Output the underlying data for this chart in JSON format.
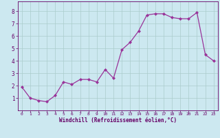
{
  "x": [
    0,
    1,
    2,
    3,
    4,
    5,
    6,
    7,
    8,
    9,
    10,
    11,
    12,
    13,
    14,
    15,
    16,
    17,
    18,
    19,
    20,
    21,
    22,
    23
  ],
  "y": [
    1.9,
    1.0,
    0.8,
    0.7,
    1.2,
    2.3,
    2.1,
    2.5,
    2.5,
    2.3,
    3.3,
    2.6,
    4.9,
    5.5,
    6.4,
    7.7,
    7.8,
    7.8,
    7.5,
    7.4,
    7.4,
    7.9,
    4.5,
    4.0
  ],
  "line_color": "#993399",
  "marker_color": "#993399",
  "bg_color": "#cce8f0",
  "grid_color": "#aacccc",
  "xlabel": "Windchill (Refroidissement éolien,°C)",
  "xlabel_color": "#660066",
  "tick_color": "#660066",
  "xlim": [
    -0.5,
    23.5
  ],
  "ylim": [
    0,
    8.8
  ],
  "yticks": [
    1,
    2,
    3,
    4,
    5,
    6,
    7,
    8
  ],
  "xticks": [
    0,
    1,
    2,
    3,
    4,
    5,
    6,
    7,
    8,
    9,
    10,
    11,
    12,
    13,
    14,
    15,
    16,
    17,
    18,
    19,
    20,
    21,
    22,
    23
  ]
}
